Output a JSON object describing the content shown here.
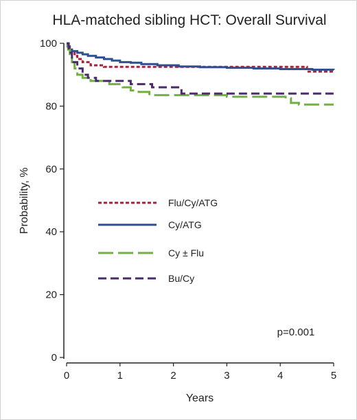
{
  "chart_data": {
    "type": "line",
    "step": true,
    "title": "HLA-matched sibling HCT: Overall Survival",
    "xlabel": "Years",
    "ylabel": "Probability, %",
    "xlim": [
      0,
      5
    ],
    "ylim": [
      0,
      100
    ],
    "xticks": [
      "0",
      "1",
      "2",
      "3",
      "4",
      "5"
    ],
    "yticks": [
      "0",
      "20",
      "40",
      "60",
      "80",
      "100"
    ],
    "grid": false,
    "legend_position": "center-left",
    "annotation": "p=0.001",
    "series": [
      {
        "name": "Flu/Cy/ATG",
        "color": "#a8203a",
        "dash": "5,3",
        "width": 3,
        "points": [
          [
            0,
            100
          ],
          [
            0.03,
            99
          ],
          [
            0.06,
            98
          ],
          [
            0.1,
            97
          ],
          [
            0.15,
            96
          ],
          [
            0.2,
            95
          ],
          [
            0.3,
            94
          ],
          [
            0.45,
            93
          ],
          [
            0.7,
            92.5
          ],
          [
            4.5,
            92.5
          ],
          [
            4.5,
            91
          ],
          [
            5,
            91
          ]
        ]
      },
      {
        "name": "Cy/ATG",
        "color": "#2d4f8e",
        "dash": "",
        "width": 3,
        "points": [
          [
            0,
            100
          ],
          [
            0.02,
            99
          ],
          [
            0.05,
            98
          ],
          [
            0.1,
            97.5
          ],
          [
            0.2,
            97
          ],
          [
            0.3,
            96.5
          ],
          [
            0.4,
            96
          ],
          [
            0.55,
            95.5
          ],
          [
            0.7,
            95
          ],
          [
            0.85,
            94.5
          ],
          [
            1.0,
            94
          ],
          [
            1.2,
            93.8
          ],
          [
            1.4,
            93.4
          ],
          [
            1.7,
            93
          ],
          [
            2.1,
            92.6
          ],
          [
            2.5,
            92.4
          ],
          [
            3.0,
            92.2
          ],
          [
            3.5,
            92
          ],
          [
            4.0,
            91.8
          ],
          [
            4.6,
            91.6
          ],
          [
            5,
            91.5
          ]
        ]
      },
      {
        "name": "Cy ± Flu",
        "color": "#72b043",
        "dash": "22,7",
        "width": 3,
        "points": [
          [
            0,
            100
          ],
          [
            0.03,
            98
          ],
          [
            0.06,
            96
          ],
          [
            0.1,
            94
          ],
          [
            0.15,
            92
          ],
          [
            0.2,
            90
          ],
          [
            0.3,
            89
          ],
          [
            0.45,
            88
          ],
          [
            0.8,
            87
          ],
          [
            1.05,
            86
          ],
          [
            1.2,
            85
          ],
          [
            1.35,
            84.5
          ],
          [
            1.55,
            83.5
          ],
          [
            3.0,
            83
          ],
          [
            4.1,
            82.5
          ],
          [
            4.2,
            81
          ],
          [
            4.35,
            80.5
          ],
          [
            5,
            80.5
          ]
        ]
      },
      {
        "name": "Bu/Cy",
        "color": "#4a2a6b",
        "dash": "12,6",
        "width": 3,
        "points": [
          [
            0,
            100
          ],
          [
            0.04,
            97
          ],
          [
            0.1,
            94
          ],
          [
            0.2,
            92
          ],
          [
            0.3,
            90
          ],
          [
            0.4,
            89
          ],
          [
            0.55,
            88
          ],
          [
            1.1,
            88
          ],
          [
            1.2,
            87
          ],
          [
            1.6,
            86
          ],
          [
            2.15,
            86
          ],
          [
            2.15,
            84
          ],
          [
            5,
            84
          ]
        ]
      }
    ]
  }
}
